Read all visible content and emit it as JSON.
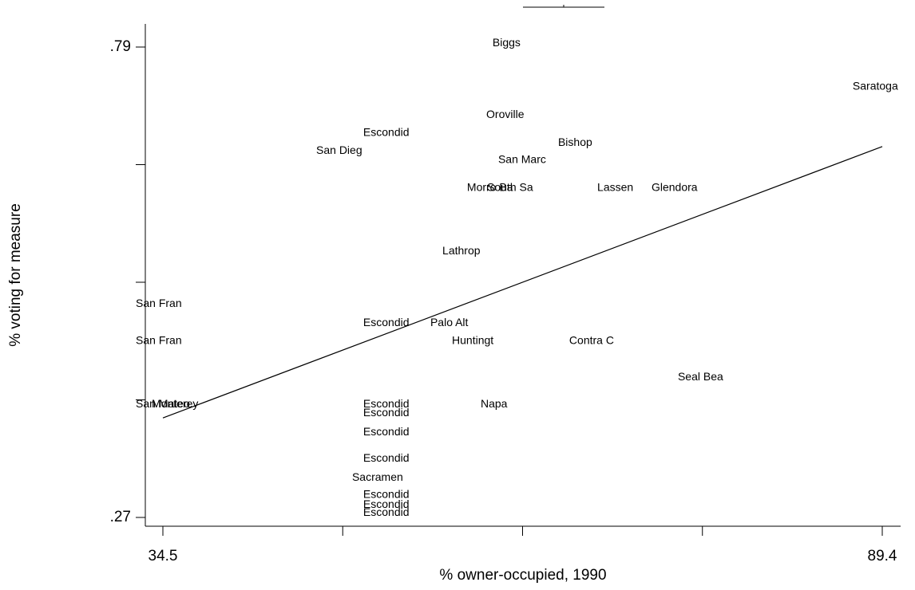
{
  "chart_data": {
    "type": "scatter",
    "x_label": "% owner-occupied, 1990",
    "y_label": "% voting for measure",
    "xlim": [
      34.5,
      89.4
    ],
    "ylim": [
      0.27,
      0.79
    ],
    "xticks": [
      34.5,
      48.225,
      61.95,
      75.675,
      89.4
    ],
    "yticks": [
      {
        "value": 0.27,
        "label": ".27"
      },
      0.4,
      0.53,
      0.66,
      {
        "value": 0.79,
        "label": ".79"
      }
    ],
    "point_labels": [
      "Biggs",
      "Saratoga",
      "Oroville",
      "Escondid",
      "San Dieg",
      "Bishop",
      "San Marc",
      "Morro Ba",
      "South Sa",
      "Lassen",
      "Glendora",
      "Lathrop",
      "San Fran",
      "Escondid",
      "Palo Alt",
      "San Fran",
      "Huntingt",
      "Contra C",
      "Seal Bea",
      "San Mateo",
      "Monterey",
      "Escondid",
      "Escondid",
      "Napa",
      "Escondid",
      "Escondid",
      "Sacramen",
      "Escondid",
      "Escondid",
      "Escondid"
    ],
    "x": [
      59.66,
      87.14,
      59.18,
      49.79,
      46.2,
      64.66,
      60.09,
      57.71,
      59.24,
      67.65,
      71.79,
      55.83,
      32.43,
      49.79,
      54.91,
      32.43,
      56.56,
      65.51,
      73.8,
      32.43,
      33.65,
      49.79,
      49.79,
      58.75,
      49.79,
      49.79,
      48.94,
      49.79,
      49.79,
      49.79
    ],
    "values": [
      0.794,
      0.746,
      0.715,
      0.695,
      0.675,
      0.684,
      0.665,
      0.634,
      0.634,
      0.634,
      0.634,
      0.564,
      0.506,
      0.485,
      0.485,
      0.465,
      0.465,
      0.465,
      0.425,
      0.395,
      0.395,
      0.395,
      0.385,
      0.395,
      0.364,
      0.335,
      0.314,
      0.295,
      0.284,
      0.275
    ],
    "fit": {
      "x": [
        34.5,
        89.4
      ],
      "values": [
        0.38,
        0.68
      ]
    }
  }
}
